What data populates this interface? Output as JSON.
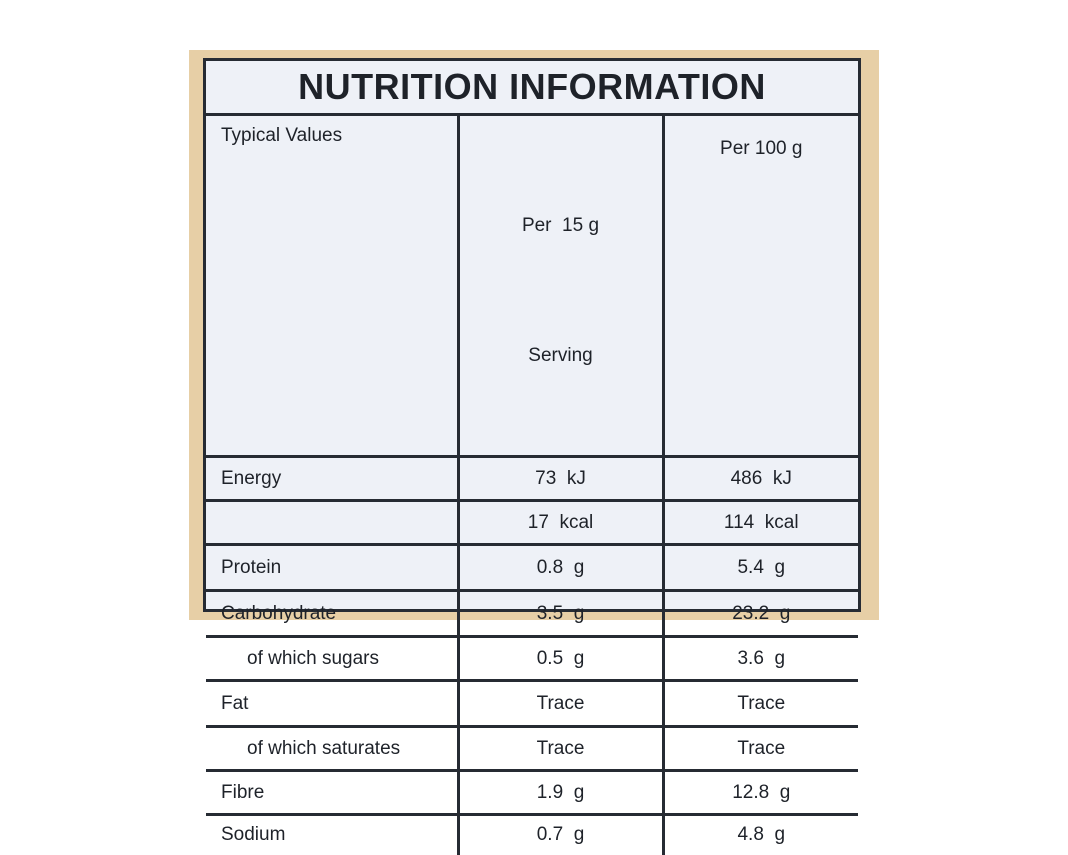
{
  "title": "NUTRITION INFORMATION",
  "header": {
    "typical": "Typical Values",
    "per_serving_line1": "Per  15 g",
    "per_serving_line2": "Serving",
    "per_100": "Per 100 g"
  },
  "rows": [
    {
      "name": "Energy",
      "serving": "73  kJ",
      "per100": "486  kJ"
    },
    {
      "name": "",
      "serving": "17  kcal",
      "per100": "114  kcal"
    },
    {
      "name": "Protein",
      "serving": "0.8  g",
      "per100": "5.4  g"
    },
    {
      "name": "Carbohydrate",
      "serving": "3.5  g",
      "per100": "23.2  g"
    },
    {
      "name": "of which sugars",
      "serving": "0.5  g",
      "per100": "3.6  g"
    },
    {
      "name": "Fat",
      "serving": "Trace",
      "per100": "Trace"
    },
    {
      "name": "of which saturates",
      "serving": "Trace",
      "per100": "Trace"
    },
    {
      "name": "Fibre",
      "serving": "1.9  g",
      "per100": "12.8  g"
    },
    {
      "name": "Sodium",
      "serving": "0.7  g",
      "per100": "4.8  g"
    }
  ]
}
